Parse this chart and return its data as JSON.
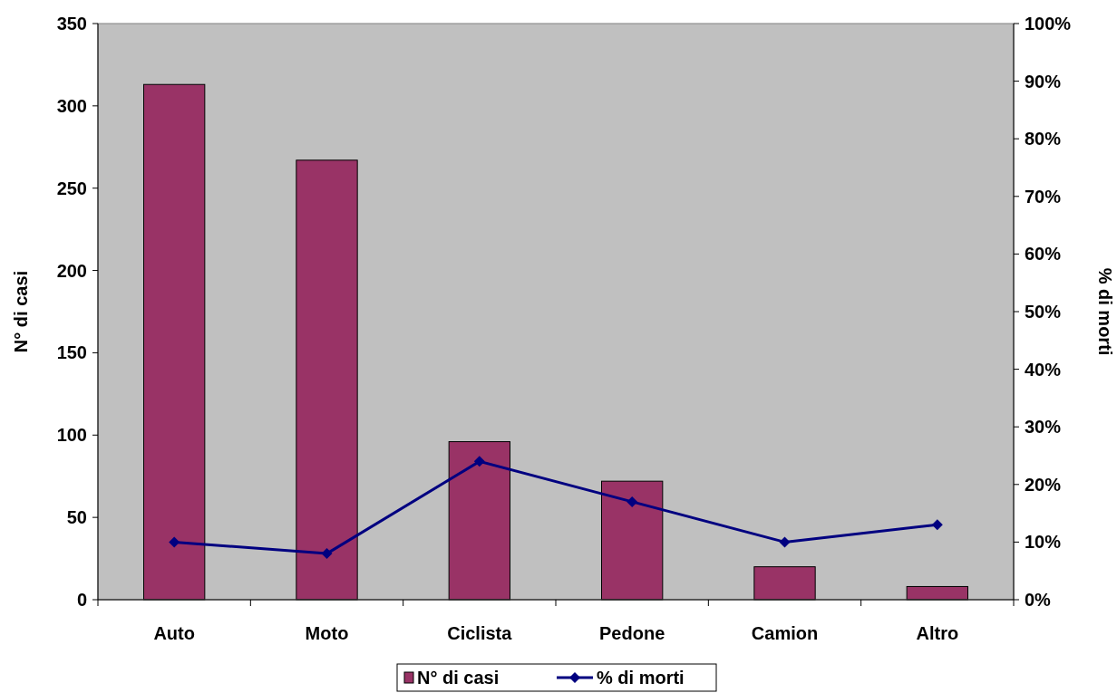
{
  "chart_data": {
    "type": "bar",
    "categories": [
      "Auto",
      "Moto",
      "Ciclista",
      "Pedone",
      "Camion",
      "Altro"
    ],
    "series": [
      {
        "name": "N° di casi",
        "color": "#993366",
        "values": [
          313,
          267,
          96,
          72,
          20,
          8
        ]
      },
      {
        "name": "% di morti",
        "type": "line",
        "axis": "y2",
        "color": "#000080",
        "marker": "diamond",
        "values": [
          10,
          8,
          24,
          17,
          10,
          13
        ]
      }
    ],
    "ylabel": "N° di casi",
    "y2label": "% di morti",
    "ylim": [
      0,
      350
    ],
    "yticks": [
      0,
      50,
      100,
      150,
      200,
      250,
      300,
      350
    ],
    "y2lim": [
      0,
      100
    ],
    "y2ticks": [
      {
        "value": 0,
        "label": "0%"
      },
      {
        "value": 10,
        "label": "10%"
      },
      {
        "value": 20,
        "label": "20%"
      },
      {
        "value": 30,
        "label": "30%"
      },
      {
        "value": 40,
        "label": "40%"
      },
      {
        "value": 50,
        "label": "50%"
      },
      {
        "value": 60,
        "label": "60%"
      },
      {
        "value": 70,
        "label": "70%"
      },
      {
        "value": 80,
        "label": "80%"
      },
      {
        "value": 90,
        "label": "90%"
      },
      {
        "value": 100,
        "label": "100%"
      }
    ],
    "grid": false,
    "legend": "bottom"
  }
}
